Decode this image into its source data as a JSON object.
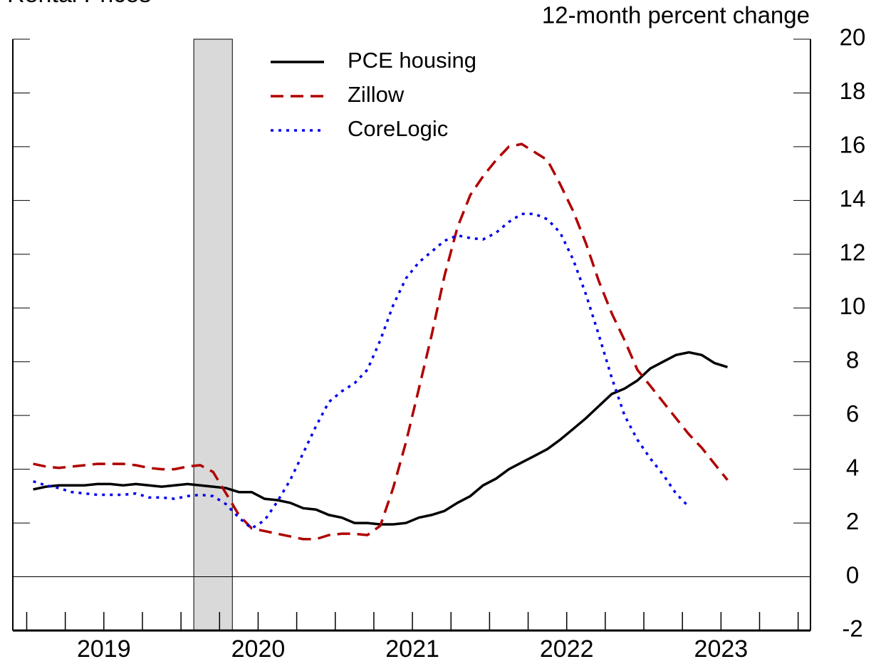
{
  "chart_data": {
    "type": "line",
    "title": "Rental Prices",
    "ylabel": "12-month percent change",
    "x": [
      2019.042,
      2019.125,
      2019.208,
      2019.292,
      2019.375,
      2019.458,
      2019.542,
      2019.625,
      2019.708,
      2019.792,
      2019.875,
      2019.958,
      2020.042,
      2020.125,
      2020.208,
      2020.292,
      2020.375,
      2020.458,
      2020.542,
      2020.625,
      2020.708,
      2020.792,
      2020.875,
      2020.958,
      2021.042,
      2021.125,
      2021.208,
      2021.292,
      2021.375,
      2021.458,
      2021.542,
      2021.625,
      2021.708,
      2021.792,
      2021.875,
      2021.958,
      2022.042,
      2022.125,
      2022.208,
      2022.292,
      2022.375,
      2022.458,
      2022.542,
      2022.625,
      2022.708,
      2022.792,
      2022.875,
      2022.958,
      2023.042,
      2023.125,
      2023.208,
      2023.292,
      2023.375,
      2023.458,
      2023.542
    ],
    "series": [
      {
        "name": "PCE housing",
        "color": "#000000",
        "style": "solid",
        "values": [
          3.25,
          3.35,
          3.4,
          3.4,
          3.4,
          3.45,
          3.45,
          3.4,
          3.45,
          3.4,
          3.35,
          3.4,
          3.45,
          3.4,
          3.35,
          3.3,
          3.15,
          3.15,
          2.9,
          2.85,
          2.75,
          2.55,
          2.5,
          2.3,
          2.2,
          2.0,
          2.0,
          1.95,
          1.95,
          2.0,
          2.2,
          2.3,
          2.45,
          2.75,
          3.0,
          3.4,
          3.65,
          4.0,
          4.25,
          4.5,
          4.75,
          5.1,
          5.5,
          5.9,
          6.35,
          6.8,
          7.0,
          7.3,
          7.75,
          8.0,
          8.25,
          8.35,
          8.25,
          7.95,
          7.8
        ]
      },
      {
        "name": "Zillow",
        "color": "#b00000",
        "style": "dashed",
        "values": [
          4.2,
          4.1,
          4.05,
          4.1,
          4.15,
          4.2,
          4.2,
          4.2,
          4.15,
          4.05,
          4.0,
          4.0,
          4.1,
          4.15,
          3.9,
          3.1,
          2.3,
          1.8,
          1.7,
          1.6,
          1.5,
          1.4,
          1.4,
          1.55,
          1.6,
          1.6,
          1.55,
          1.9,
          3.3,
          5.0,
          7.0,
          9.0,
          11.2,
          13.0,
          14.2,
          14.9,
          15.5,
          16.0,
          16.1,
          15.8,
          15.5,
          14.6,
          13.6,
          12.4,
          11.0,
          9.8,
          8.8,
          7.7,
          7.1,
          6.5,
          5.9,
          5.3,
          4.8,
          4.2,
          3.6
        ]
      },
      {
        "name": "CoreLogic",
        "color": "#0000ee",
        "style": "dotted",
        "values": [
          3.55,
          3.4,
          3.3,
          3.15,
          3.1,
          3.05,
          3.05,
          3.05,
          3.1,
          2.95,
          2.95,
          2.9,
          3.0,
          3.05,
          3.0,
          2.7,
          2.2,
          1.8,
          2.1,
          2.8,
          3.6,
          4.6,
          5.6,
          6.5,
          6.9,
          7.2,
          7.7,
          8.8,
          10.1,
          11.1,
          11.7,
          12.1,
          12.5,
          12.7,
          12.6,
          12.55,
          12.8,
          13.2,
          13.5,
          13.5,
          13.3,
          12.8,
          11.8,
          10.5,
          9.0,
          7.4,
          6.0,
          5.1,
          4.4,
          3.8,
          3.1,
          2.6,
          null,
          null,
          null
        ]
      }
    ],
    "xlim": [
      2018.91,
      2024.08
    ],
    "xticks": [
      {
        "value": 2019.5,
        "label": "2019"
      },
      {
        "value": 2020.5,
        "label": "2020"
      },
      {
        "value": 2021.5,
        "label": "2021"
      },
      {
        "value": 2022.5,
        "label": "2022"
      },
      {
        "value": 2023.5,
        "label": "2023"
      }
    ],
    "x_minor_ticks": [
      2019,
      2019.25,
      2019.5,
      2019.75,
      2020,
      2020.25,
      2020.5,
      2020.75,
      2021,
      2021.25,
      2021.5,
      2021.75,
      2022,
      2022.25,
      2022.5,
      2022.75,
      2023,
      2023.25,
      2023.5,
      2023.75,
      2024
    ],
    "ylim": [
      -2,
      20
    ],
    "yticks": [
      -2,
      0,
      2,
      4,
      6,
      8,
      10,
      12,
      14,
      16,
      18,
      20
    ],
    "shaded_region": [
      2020.083,
      2020.333
    ],
    "zero_line": true,
    "legend": true
  }
}
